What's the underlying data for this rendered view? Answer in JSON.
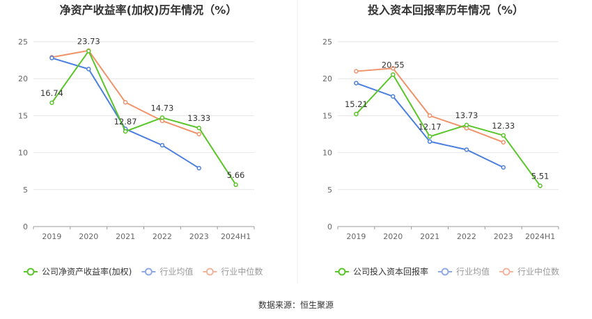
{
  "source": "数据来源：恒生聚源",
  "colors": {
    "company": "#5ac528",
    "mean": "#4a7fe0",
    "median": "#f0926a",
    "legend_mean": "#8fa9e6",
    "legend_median": "#f2b49c"
  },
  "chart_data": [
    {
      "type": "line",
      "title": "净资产收益率(加权)历年情况（%）",
      "categories": [
        "2019",
        "2020",
        "2021",
        "2022",
        "2023",
        "2024H1"
      ],
      "ylim": [
        0,
        25
      ],
      "yticks": [
        0,
        5,
        10,
        15,
        20,
        25
      ],
      "grid": true,
      "legend_position": "bottom",
      "series": [
        {
          "name": "公司净资产收益率(加权)",
          "key": "company",
          "values": [
            16.74,
            23.73,
            12.87,
            14.73,
            13.33,
            5.66
          ],
          "labels": [
            "16.74",
            "23.73",
            "12.87",
            "14.73",
            "13.33",
            "5.66"
          ]
        },
        {
          "name": "行业均值",
          "key": "mean",
          "values": [
            22.8,
            21.3,
            13.2,
            11.0,
            7.9,
            null
          ]
        },
        {
          "name": "行业中位数",
          "key": "median",
          "values": [
            22.9,
            23.8,
            16.8,
            14.3,
            12.5,
            null
          ]
        }
      ]
    },
    {
      "type": "line",
      "title": "投入资本回报率历年情况（%）",
      "categories": [
        "2019",
        "2020",
        "2021",
        "2022",
        "2023",
        "2024H1"
      ],
      "ylim": [
        0,
        25
      ],
      "yticks": [
        0,
        5,
        10,
        15,
        20,
        25
      ],
      "grid": true,
      "legend_position": "bottom",
      "series": [
        {
          "name": "公司投入资本回报率",
          "key": "company",
          "values": [
            15.21,
            20.55,
            12.17,
            13.73,
            12.33,
            5.51
          ],
          "labels": [
            "15.21",
            "20.55",
            "12.17",
            "13.73",
            "12.33",
            "5.51"
          ]
        },
        {
          "name": "行业均值",
          "key": "mean",
          "values": [
            19.4,
            17.6,
            11.5,
            10.4,
            8.0,
            null
          ]
        },
        {
          "name": "行业中位数",
          "key": "median",
          "values": [
            21.0,
            21.4,
            15.0,
            13.3,
            11.4,
            null
          ]
        }
      ]
    }
  ]
}
